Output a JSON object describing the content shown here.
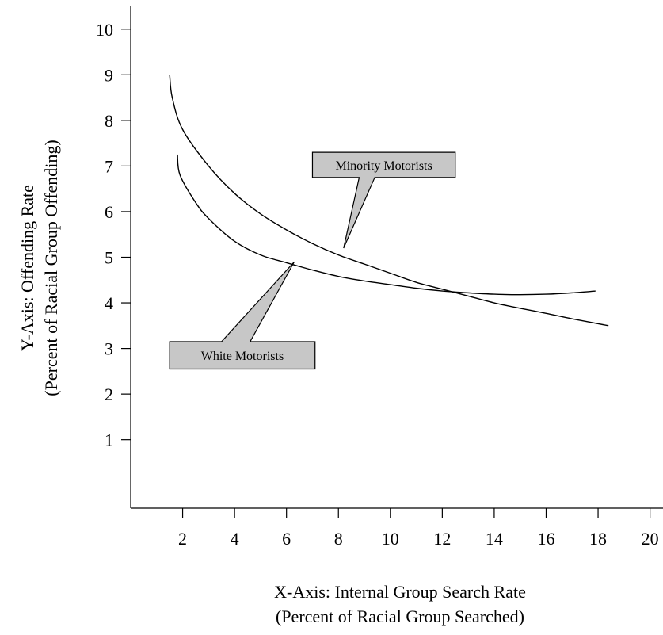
{
  "chart_data": {
    "type": "line",
    "xlabel_line1": "X-Axis: Internal Group Search Rate",
    "xlabel_line2": "(Percent of Racial Group Searched)",
    "ylabel_line1": "Y-Axis: Offending Rate",
    "ylabel_line2": "(Percent of Racial Group Offending)",
    "xlim": [
      0,
      20.5
    ],
    "ylim": [
      -0.5,
      10.5
    ],
    "x_ticks": [
      2,
      4,
      6,
      8,
      10,
      12,
      14,
      16,
      18,
      20
    ],
    "x_tick_labels": [
      "2",
      "4",
      "6",
      "8",
      "10",
      "12",
      "14",
      "16",
      "18",
      "20"
    ],
    "y_ticks": [
      1,
      2,
      3,
      4,
      5,
      6,
      7,
      8,
      9,
      10
    ],
    "y_tick_labels": [
      "1",
      "2",
      "3",
      "4",
      "5",
      "6",
      "7",
      "8",
      "9",
      "10"
    ],
    "grid": false,
    "legend": "none",
    "series": [
      {
        "name": "Minority Motorists",
        "x": [
          1.5,
          1.6,
          2.0,
          3.0,
          4.0,
          5.0,
          6.0,
          7.0,
          8.0,
          9.0,
          10.0,
          11.0,
          12.0,
          13.0,
          14.0,
          15.0,
          16.0,
          17.0,
          18.4
        ],
        "y": [
          9.0,
          8.5,
          7.8,
          7.0,
          6.4,
          5.95,
          5.6,
          5.3,
          5.05,
          4.85,
          4.65,
          4.45,
          4.3,
          4.15,
          4.0,
          3.88,
          3.77,
          3.65,
          3.5
        ]
      },
      {
        "name": "White Motorists",
        "x": [
          1.8,
          1.9,
          2.5,
          3.0,
          4.0,
          5.0,
          6.0,
          7.0,
          8.0,
          9.0,
          10.0,
          11.0,
          12.0,
          13.0,
          14.0,
          15.0,
          16.0,
          17.0,
          17.9
        ],
        "y": [
          7.25,
          6.8,
          6.2,
          5.85,
          5.35,
          5.05,
          4.88,
          4.72,
          4.58,
          4.48,
          4.4,
          4.32,
          4.26,
          4.22,
          4.19,
          4.18,
          4.19,
          4.22,
          4.26
        ]
      }
    ],
    "annotations": [
      {
        "text": "Minority Motorists",
        "series": "Minority Motorists",
        "point_x": 8.2,
        "point_y": 5.2,
        "box_x": [
          7.0,
          12.5
        ],
        "box_y": [
          6.75,
          7.3
        ],
        "stem_x": [
          8.8,
          9.4
        ]
      },
      {
        "text": "White Motorists",
        "series": "White Motorists",
        "point_x": 6.3,
        "point_y": 4.9,
        "box_x": [
          1.5,
          7.1
        ],
        "box_y": [
          2.55,
          3.15
        ],
        "stem_x": [
          3.5,
          4.6
        ]
      }
    ]
  }
}
